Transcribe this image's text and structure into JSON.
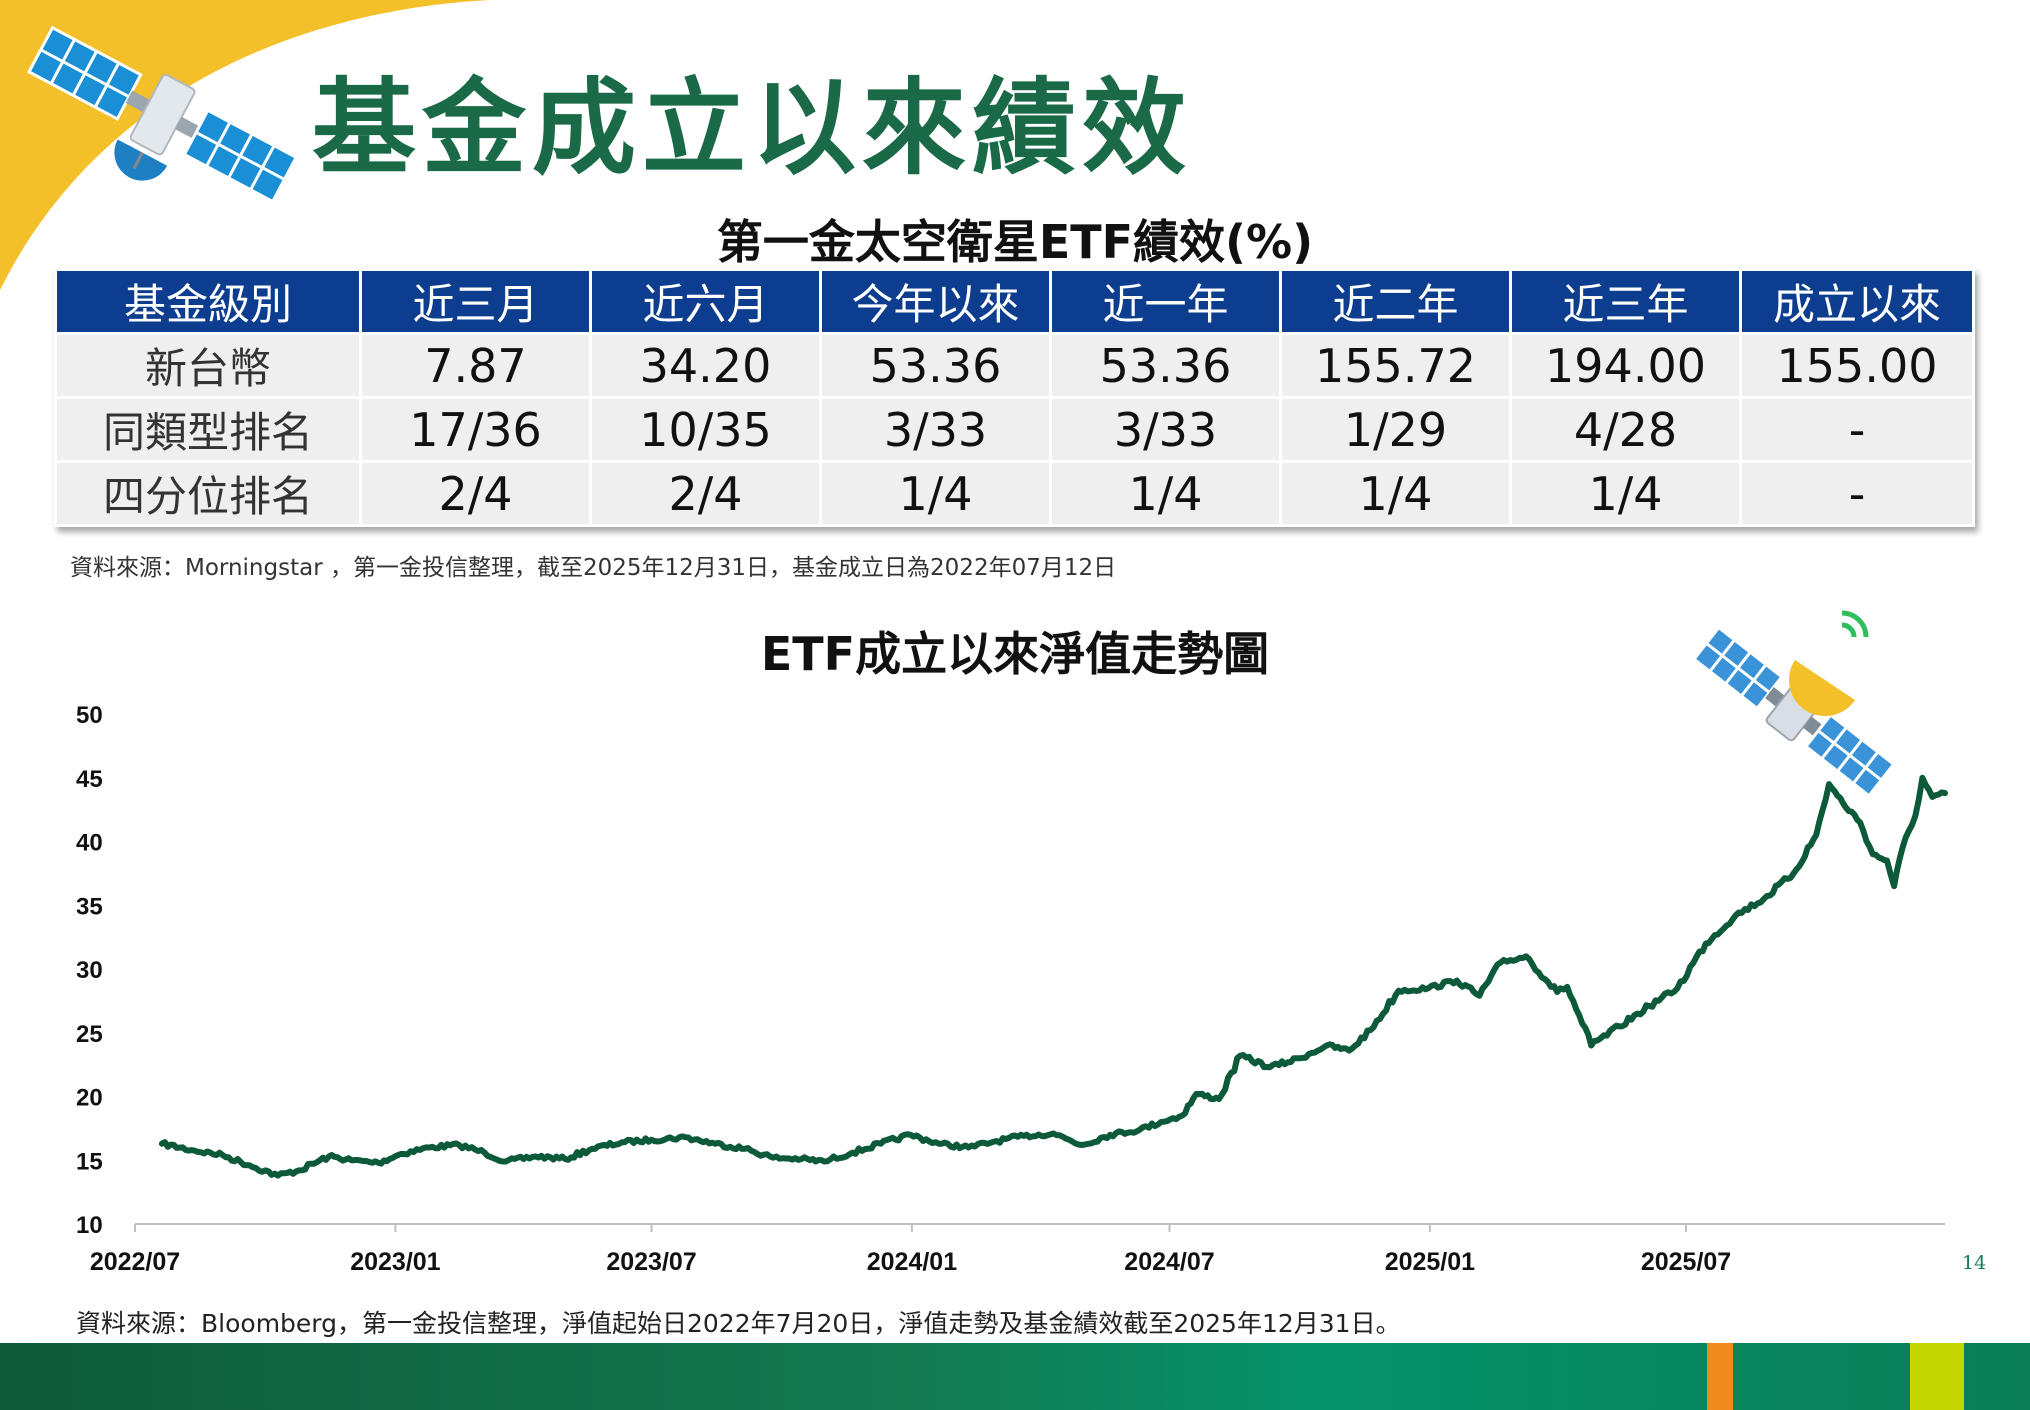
{
  "page": {
    "title": "基金成立以來績效",
    "page_number": "14",
    "icons": [
      "satellite-icon",
      "satellite-signal-icon"
    ],
    "colors": {
      "title": "#1a6a48",
      "table_header": "#0c3d8e",
      "line": "#0d5a3a",
      "corner": "#f3c02a"
    }
  },
  "table": {
    "title": "第一金太空衛星ETF績效(%)",
    "headers": [
      "基金級別",
      "近三月",
      "近六月",
      "今年以來",
      "近一年",
      "近二年",
      "近三年",
      "成立以來"
    ],
    "rows": [
      [
        "新台幣",
        "7.87",
        "34.20",
        "53.36",
        "53.36",
        "155.72",
        "194.00",
        "155.00"
      ],
      [
        "同類型排名",
        "17/36",
        "10/35",
        "3/33",
        "3/33",
        "1/29",
        "4/28",
        "-"
      ],
      [
        "四分位排名",
        "2/4",
        "2/4",
        "1/4",
        "1/4",
        "1/4",
        "1/4",
        "-"
      ]
    ],
    "source": "資料來源：Morningstar ，第一金投信整理，截至2025年12月31日，基金成立日為2022年07月12日"
  },
  "chart_data": {
    "type": "line",
    "title": "ETF成立以來淨值走勢圖",
    "xlabel": "",
    "ylabel": "",
    "ylim": [
      10,
      50
    ],
    "yticks": [
      "50",
      "45",
      "40",
      "35",
      "30",
      "25",
      "20",
      "15",
      "10"
    ],
    "xticks": [
      "2022/07",
      "2023/01",
      "2023/07",
      "2024/01",
      "2024/07",
      "2025/01",
      "2025/07"
    ],
    "xlim": [
      "2022/07",
      "2025/12"
    ],
    "grid": false,
    "legend": "none",
    "series": [
      {
        "x": [
          "2022/07/20",
          "2022/08/10",
          "2022/09/01",
          "2022/09/20",
          "2022/10/10",
          "2022/10/25",
          "2022/11/15",
          "2022/12/01",
          "2022/12/20",
          "2023/01/05",
          "2023/01/25",
          "2023/02/15",
          "2023/03/05",
          "2023/03/20",
          "2023/04/10",
          "2023/05/01",
          "2023/05/20",
          "2023/06/10",
          "2023/07/01",
          "2023/07/25",
          "2023/08/15",
          "2023/09/05",
          "2023/09/25",
          "2023/10/15",
          "2023/10/31",
          "2023/11/20",
          "2023/12/10",
          "2023/12/31",
          "2024/01/20",
          "2024/02/10",
          "2024/03/01",
          "2024/03/20",
          "2024/04/10",
          "2024/04/30",
          "2024/05/20",
          "2024/06/10",
          "2024/06/25",
          "2024/07/10",
          "2024/07/20",
          "2024/08/05",
          "2024/08/20",
          "2024/09/10",
          "2024/10/01",
          "2024/10/20",
          "2024/11/05",
          "2024/11/20",
          "2024/12/10",
          "2024/12/31",
          "2025/01/20",
          "2025/02/05",
          "2025/02/20",
          "2025/03/10",
          "2025/04/01",
          "2025/04/08",
          "2025/04/25",
          "2025/05/15",
          "2025/06/05",
          "2025/06/25",
          "2025/07/15",
          "2025/08/05",
          "2025/08/25",
          "2025/09/15",
          "2025/10/01",
          "2025/10/10",
          "2025/10/20",
          "2025/11/01",
          "2025/11/10",
          "2025/11/20",
          "2025/11/25",
          "2025/12/01",
          "2025/12/10",
          "2025/12/15",
          "2025/12/22",
          "2025/12/31"
        ],
        "values": [
          16.3,
          15.8,
          15.4,
          14.6,
          13.8,
          14.2,
          15.3,
          15.0,
          14.8,
          15.5,
          16.0,
          16.2,
          15.6,
          14.9,
          15.3,
          15.1,
          15.9,
          16.4,
          16.6,
          16.8,
          16.3,
          15.9,
          15.2,
          15.1,
          14.9,
          15.6,
          16.3,
          17.0,
          16.3,
          16.0,
          16.5,
          16.9,
          17.1,
          16.2,
          17.0,
          17.4,
          18.0,
          18.5,
          20.2,
          19.8,
          23.2,
          22.3,
          23.0,
          24.0,
          23.6,
          25.2,
          28.3,
          28.5,
          29.1,
          27.9,
          30.5,
          31.0,
          28.2,
          28.6,
          24.0,
          25.5,
          27.1,
          28.5,
          32.0,
          34.2,
          35.5,
          37.5,
          40.5,
          44.5,
          43.0,
          41.5,
          39.0,
          38.5,
          36.5,
          39.5,
          42.0,
          45.0,
          43.5,
          43.8
        ]
      }
    ],
    "source": "資料來源：Bloomberg，第一金投信整理，淨值起始日2022年7月20日，淨值走勢及基金績效截至2025年12月31日。"
  }
}
